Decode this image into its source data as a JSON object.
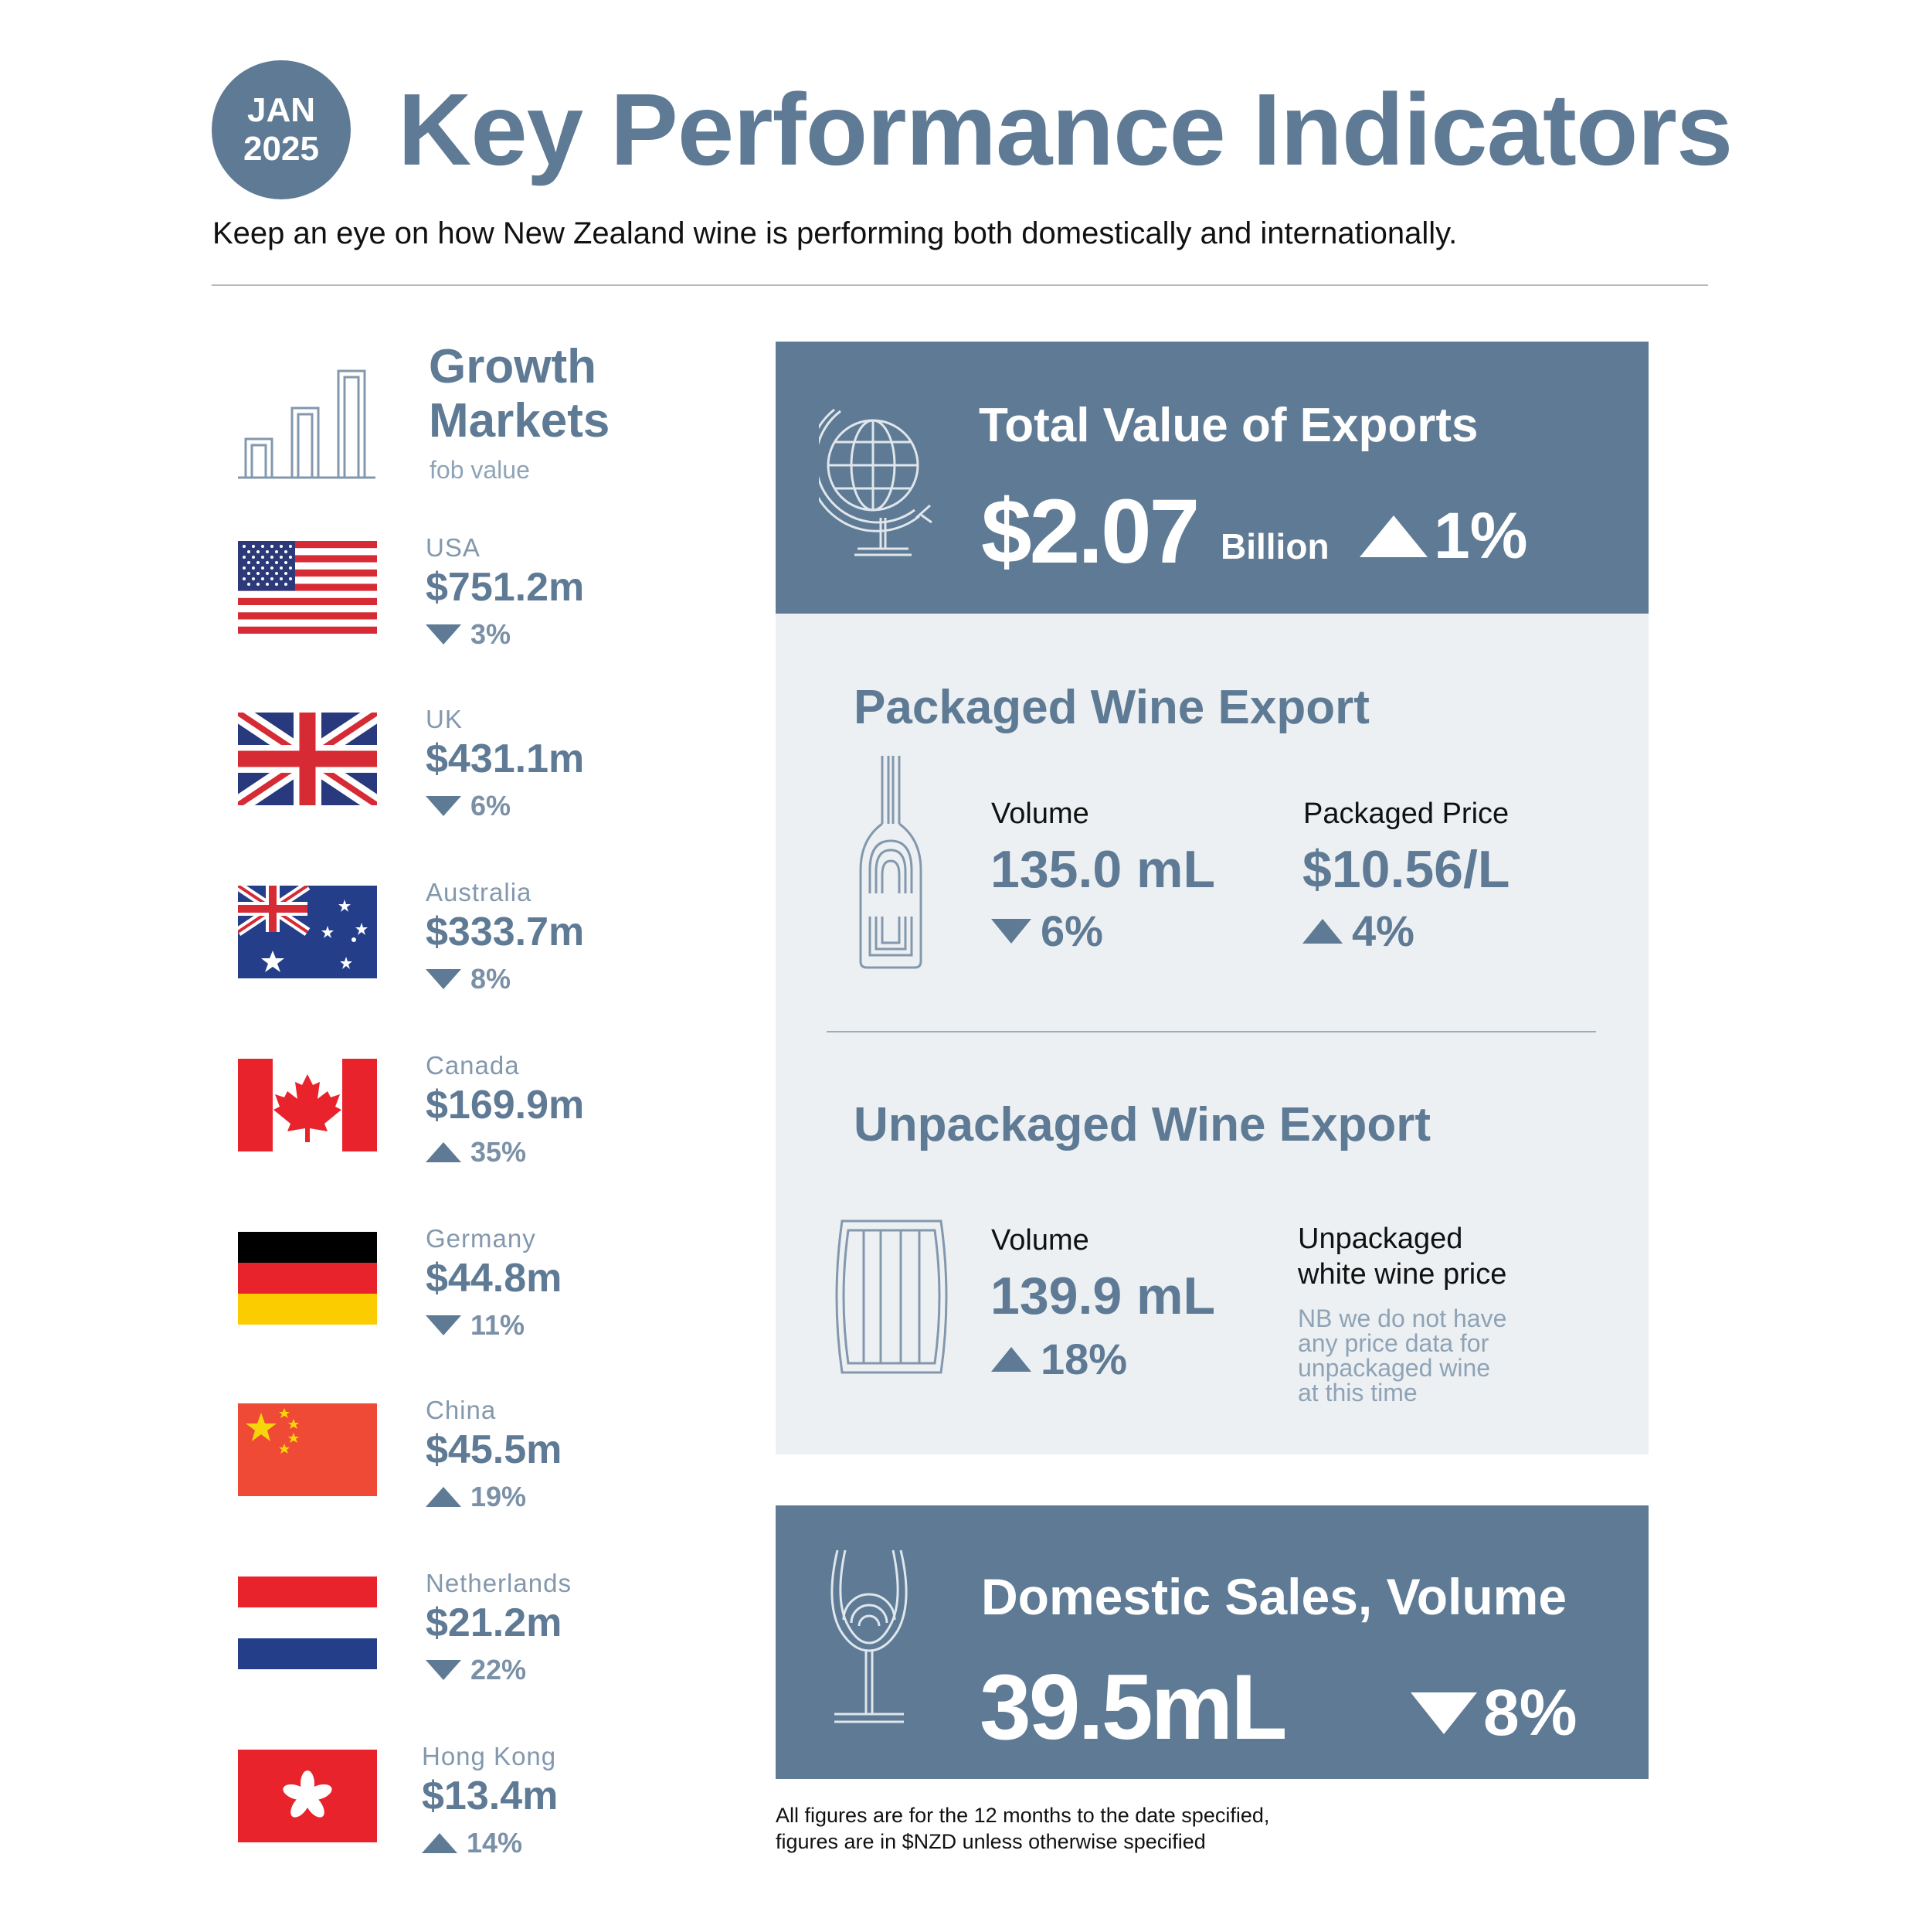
{
  "header": {
    "badge_month": "JAN",
    "badge_year": "2025",
    "title": "Key Performance Indicators",
    "subtitle": "Keep an eye on how New Zealand wine is performing both domestically and internationally."
  },
  "growth_markets": {
    "title_line1": "Growth",
    "title_line2": "Markets",
    "subtitle": "fob value",
    "markets": [
      {
        "name": "USA",
        "value": "$751.2m",
        "change": "3%",
        "direction": "down",
        "flag_icon": "usa-flag-icon"
      },
      {
        "name": "UK",
        "value": "$431.1m",
        "change": "6%",
        "direction": "down",
        "flag_icon": "uk-flag-icon"
      },
      {
        "name": "Australia",
        "value": "$333.7m",
        "change": "8%",
        "direction": "down",
        "flag_icon": "australia-flag-icon"
      },
      {
        "name": "Canada",
        "value": "$169.9m",
        "change": "35%",
        "direction": "up",
        "flag_icon": "canada-flag-icon"
      },
      {
        "name": "Germany",
        "value": "$44.8m",
        "change": "11%",
        "direction": "down",
        "flag_icon": "germany-flag-icon"
      },
      {
        "name": "China",
        "value": "$45.5m",
        "change": "19%",
        "direction": "up",
        "flag_icon": "china-flag-icon"
      },
      {
        "name": "Netherlands",
        "value": "$21.2m",
        "change": "22%",
        "direction": "down",
        "flag_icon": "netherlands-flag-icon"
      },
      {
        "name": "Hong Kong",
        "value": "$13.4m",
        "change": "14%",
        "direction": "up",
        "flag_icon": "hong-kong-flag-icon"
      }
    ]
  },
  "total_exports": {
    "title": "Total Value of Exports",
    "value": "$2.07",
    "unit": "Billion",
    "change": "1%",
    "direction": "up",
    "icon": "globe-icon"
  },
  "packaged": {
    "title": "Packaged Wine Export",
    "icon": "wine-bottle-icon",
    "volume_label": "Volume",
    "volume_value": "135.0 mL",
    "volume_change": "6%",
    "volume_direction": "down",
    "price_label": "Packaged Price",
    "price_value": "$10.56/L",
    "price_change": "4%",
    "price_direction": "up"
  },
  "unpackaged": {
    "title": "Unpackaged Wine Export",
    "icon": "barrel-icon",
    "volume_label": "Volume",
    "volume_value": "139.9 mL",
    "volume_change": "18%",
    "volume_direction": "up",
    "price_label_line1": "Unpackaged",
    "price_label_line2": "white wine price",
    "note_lines": [
      "NB we do not have",
      "any price data for",
      "unpackaged wine",
      "at this time"
    ]
  },
  "domestic": {
    "title": "Domestic Sales, Volume",
    "value": "39.5mL",
    "change": "8%",
    "direction": "down",
    "icon": "wine-glass-icon"
  },
  "footnote": {
    "line1": "All figures are for the 12 months to the date specified,",
    "line2": "figures are in $NZD unless otherwise specified"
  },
  "colors": {
    "primary": "#5e7a94",
    "light_panel": "#ecf0f3",
    "muted": "#8fa3b6"
  }
}
